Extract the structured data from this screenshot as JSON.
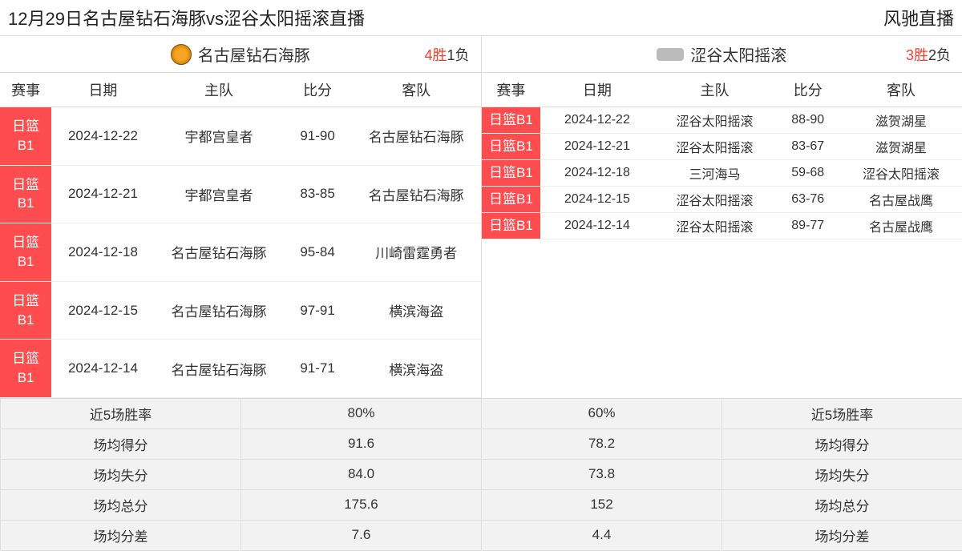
{
  "header": {
    "title_left": "12月29日名古屋钻石海豚vs涩谷太阳摇滚直播",
    "title_right": "风驰直播"
  },
  "columns": {
    "event": "赛事",
    "date": "日期",
    "home": "主队",
    "score": "比分",
    "away": "客队"
  },
  "colors": {
    "badge_bg": "#ff4d4f",
    "record_red": "#ff3b30",
    "grid_border": "#dddddd",
    "stats_bg": "#f2f2f2"
  },
  "teamA": {
    "name": "名古屋钻石海豚",
    "record_win": "4胜",
    "record_loss": "1负",
    "matches": [
      {
        "league": "日篮B1",
        "date": "2024-12-22",
        "home": "宇都宫皇者",
        "score": "91-90",
        "away": "名古屋钻石海豚"
      },
      {
        "league": "日篮B1",
        "date": "2024-12-21",
        "home": "宇都宫皇者",
        "score": "83-85",
        "away": "名古屋钻石海豚"
      },
      {
        "league": "日篮B1",
        "date": "2024-12-18",
        "home": "名古屋钻石海豚",
        "score": "95-84",
        "away": "川崎雷霆勇者"
      },
      {
        "league": "日篮B1",
        "date": "2024-12-15",
        "home": "名古屋钻石海豚",
        "score": "97-91",
        "away": "横滨海盗"
      },
      {
        "league": "日篮B1",
        "date": "2024-12-14",
        "home": "名古屋钻石海豚",
        "score": "91-71",
        "away": "横滨海盗"
      }
    ]
  },
  "teamB": {
    "name": "涩谷太阳摇滚",
    "record_win": "3胜",
    "record_loss": "2负",
    "matches": [
      {
        "league": "日篮B1",
        "date": "2024-12-22",
        "home": "涩谷太阳摇滚",
        "score": "88-90",
        "away": "滋贺湖星"
      },
      {
        "league": "日篮B1",
        "date": "2024-12-21",
        "home": "涩谷太阳摇滚",
        "score": "83-67",
        "away": "滋贺湖星"
      },
      {
        "league": "日篮B1",
        "date": "2024-12-18",
        "home": "三河海马",
        "score": "59-68",
        "away": "涩谷太阳摇滚"
      },
      {
        "league": "日篮B1",
        "date": "2024-12-15",
        "home": "涩谷太阳摇滚",
        "score": "63-76",
        "away": "名古屋战鹰"
      },
      {
        "league": "日篮B1",
        "date": "2024-12-14",
        "home": "涩谷太阳摇滚",
        "score": "89-77",
        "away": "名古屋战鹰"
      }
    ]
  },
  "stats": {
    "labels": {
      "winrate": "近5场胜率",
      "avg_score": "场均得分",
      "avg_lost": "场均失分",
      "avg_total": "场均总分",
      "avg_diff": "场均分差"
    },
    "teamA": {
      "winrate": "80%",
      "avg_score": "91.6",
      "avg_lost": "84.0",
      "avg_total": "175.6",
      "avg_diff": "7.6"
    },
    "teamB": {
      "winrate": "60%",
      "avg_score": "78.2",
      "avg_lost": "73.8",
      "avg_total": "152",
      "avg_diff": "4.4"
    }
  }
}
